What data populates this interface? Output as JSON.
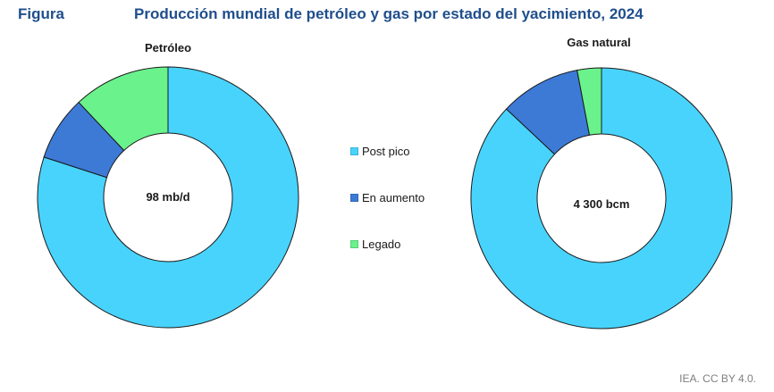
{
  "header": {
    "figure_label": "Figura",
    "title": "Producción mundial de petróleo y gas por estado del yacimiento, 2024"
  },
  "colors": {
    "post_pico": "#48d3fd",
    "en_aumento": "#3c7ad6",
    "legado": "#6af28c",
    "title": "#1f4e8c"
  },
  "legend": {
    "items": [
      {
        "label": "Post pico",
        "color": "#48d3fd"
      },
      {
        "label": "En aumento",
        "color": "#3c7ad6"
      },
      {
        "label": "Legado",
        "color": "#6af28c"
      }
    ]
  },
  "credit": "IEA. CC BY 4.0.",
  "chart_data": [
    {
      "type": "pie",
      "donut": true,
      "title": "Petróleo",
      "center_label": "98 mb/d",
      "categories": [
        "Post pico",
        "En aumento",
        "Legado"
      ],
      "values": [
        80,
        8,
        12
      ],
      "unit": "%"
    },
    {
      "type": "pie",
      "donut": true,
      "title": "Gas natural",
      "center_label": "4 300 bcm",
      "categories": [
        "Post pico",
        "En aumento",
        "Legado"
      ],
      "values": [
        87,
        10,
        3
      ],
      "unit": "%"
    }
  ]
}
